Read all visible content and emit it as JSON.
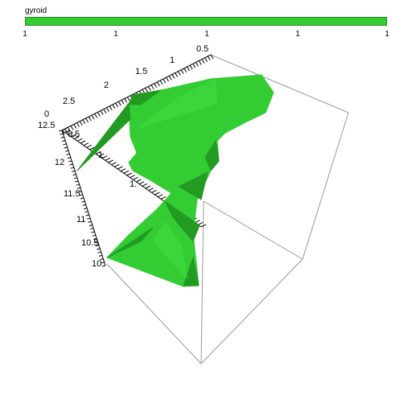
{
  "colorbar": {
    "title": "gyroid",
    "ticks": [
      "1",
      "1",
      "1",
      "1",
      "1"
    ],
    "color": "#33cc33"
  },
  "axes": {
    "top_ticks": [
      "0.5",
      "1",
      "1.5",
      "2",
      "2.5"
    ],
    "diag_ticks": [
      "0",
      "0.5",
      "1",
      "1."
    ],
    "left_ticks": [
      "12.5",
      "12",
      "11.5",
      "11",
      "10.5",
      "10"
    ]
  },
  "surface": {
    "fill": "#33cc33",
    "shade": "#239b23"
  }
}
